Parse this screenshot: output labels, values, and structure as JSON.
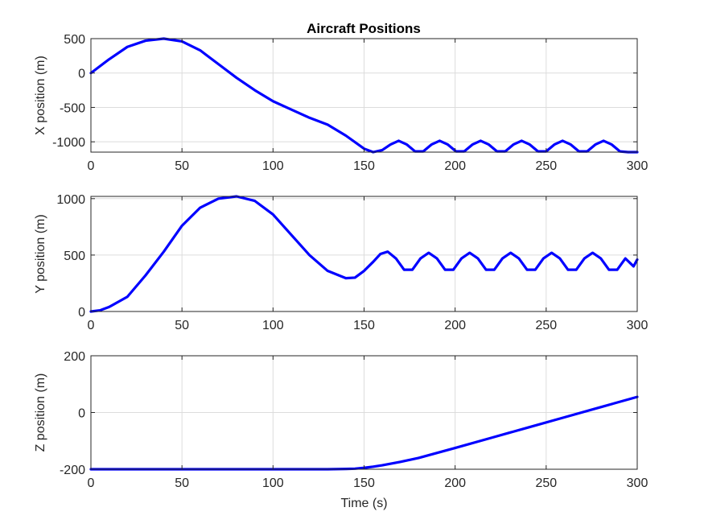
{
  "figure": {
    "title": "Aircraft Positions",
    "xlabel": "Time (s)"
  },
  "colors": {
    "line": "#0000ff",
    "grid": "#dcdcdc",
    "axis": "#262626",
    "background": "#ffffff"
  },
  "chart_data": [
    {
      "type": "line",
      "title": "Aircraft Positions",
      "xlabel": "",
      "ylabel": "X position (m)",
      "xlim": [
        0,
        300
      ],
      "ylim": [
        -1150,
        500
      ],
      "xticks": [
        0,
        50,
        100,
        150,
        200,
        250,
        300
      ],
      "yticks": [
        -1000,
        -500,
        0,
        500
      ],
      "grid": true,
      "series": [
        {
          "x": [
            0,
            10,
            20,
            30,
            40,
            50,
            60,
            70,
            80,
            90,
            100,
            110,
            120,
            130,
            140,
            150,
            155,
            160,
            164.5,
            169,
            173.5,
            178,
            182.5,
            187,
            191.5,
            196,
            200.5,
            205,
            209.5,
            214,
            218.5,
            223,
            227.5,
            232,
            236.5,
            241,
            245.5,
            250,
            254.5,
            259,
            263.5,
            268,
            272.5,
            277,
            281.5,
            286,
            290.5,
            295,
            300
          ],
          "y": [
            0,
            200,
            380,
            470,
            500,
            460,
            330,
            130,
            -70,
            -250,
            -410,
            -530,
            -650,
            -750,
            -910,
            -1100,
            -1150,
            -1120,
            -1040,
            -985,
            -1040,
            -1140,
            -1140,
            -1040,
            -985,
            -1040,
            -1140,
            -1140,
            -1040,
            -985,
            -1040,
            -1140,
            -1140,
            -1040,
            -985,
            -1040,
            -1140,
            -1140,
            -1040,
            -985,
            -1040,
            -1140,
            -1140,
            -1040,
            -985,
            -1040,
            -1140,
            -1150,
            -1150
          ]
        }
      ]
    },
    {
      "type": "line",
      "title": "",
      "xlabel": "",
      "ylabel": "Y position (m)",
      "xlim": [
        0,
        300
      ],
      "ylim": [
        0,
        1020
      ],
      "xticks": [
        0,
        50,
        100,
        150,
        200,
        250,
        300
      ],
      "yticks": [
        0,
        500,
        1000
      ],
      "grid": true,
      "series": [
        {
          "x": [
            0,
            5,
            10,
            20,
            30,
            40,
            50,
            60,
            70,
            80,
            90,
            100,
            110,
            120,
            130,
            140,
            145,
            150,
            155,
            159,
            163,
            167.5,
            172,
            176.5,
            181,
            185.5,
            190,
            194.5,
            199,
            203.5,
            208,
            212.5,
            217,
            221.5,
            226,
            230.5,
            235,
            239.5,
            244,
            248.5,
            253,
            257.5,
            262,
            266.5,
            271,
            275.5,
            280,
            284.5,
            289,
            293.5,
            298,
            300
          ],
          "y": [
            0,
            10,
            40,
            130,
            320,
            530,
            760,
            920,
            1000,
            1020,
            980,
            860,
            680,
            500,
            360,
            295,
            300,
            360,
            440,
            510,
            530,
            470,
            370,
            370,
            470,
            520,
            470,
            370,
            370,
            470,
            520,
            470,
            370,
            370,
            470,
            520,
            470,
            370,
            370,
            470,
            520,
            470,
            370,
            370,
            470,
            520,
            470,
            370,
            370,
            470,
            400,
            460
          ]
        }
      ]
    },
    {
      "type": "line",
      "title": "",
      "xlabel": "Time (s)",
      "ylabel": "Z position (m)",
      "xlim": [
        0,
        300
      ],
      "ylim": [
        -200,
        200
      ],
      "xticks": [
        0,
        50,
        100,
        150,
        200,
        250,
        300
      ],
      "yticks": [
        -200,
        0,
        200
      ],
      "grid": true,
      "series": [
        {
          "x": [
            0,
            50,
            100,
            130,
            140,
            145,
            150,
            155,
            160,
            170,
            180,
            200,
            220,
            240,
            260,
            280,
            300
          ],
          "y": [
            -200,
            -200,
            -200,
            -200,
            -199,
            -198,
            -195,
            -191,
            -186,
            -174,
            -160,
            -125,
            -89,
            -53,
            -17,
            19,
            55
          ]
        }
      ]
    }
  ]
}
